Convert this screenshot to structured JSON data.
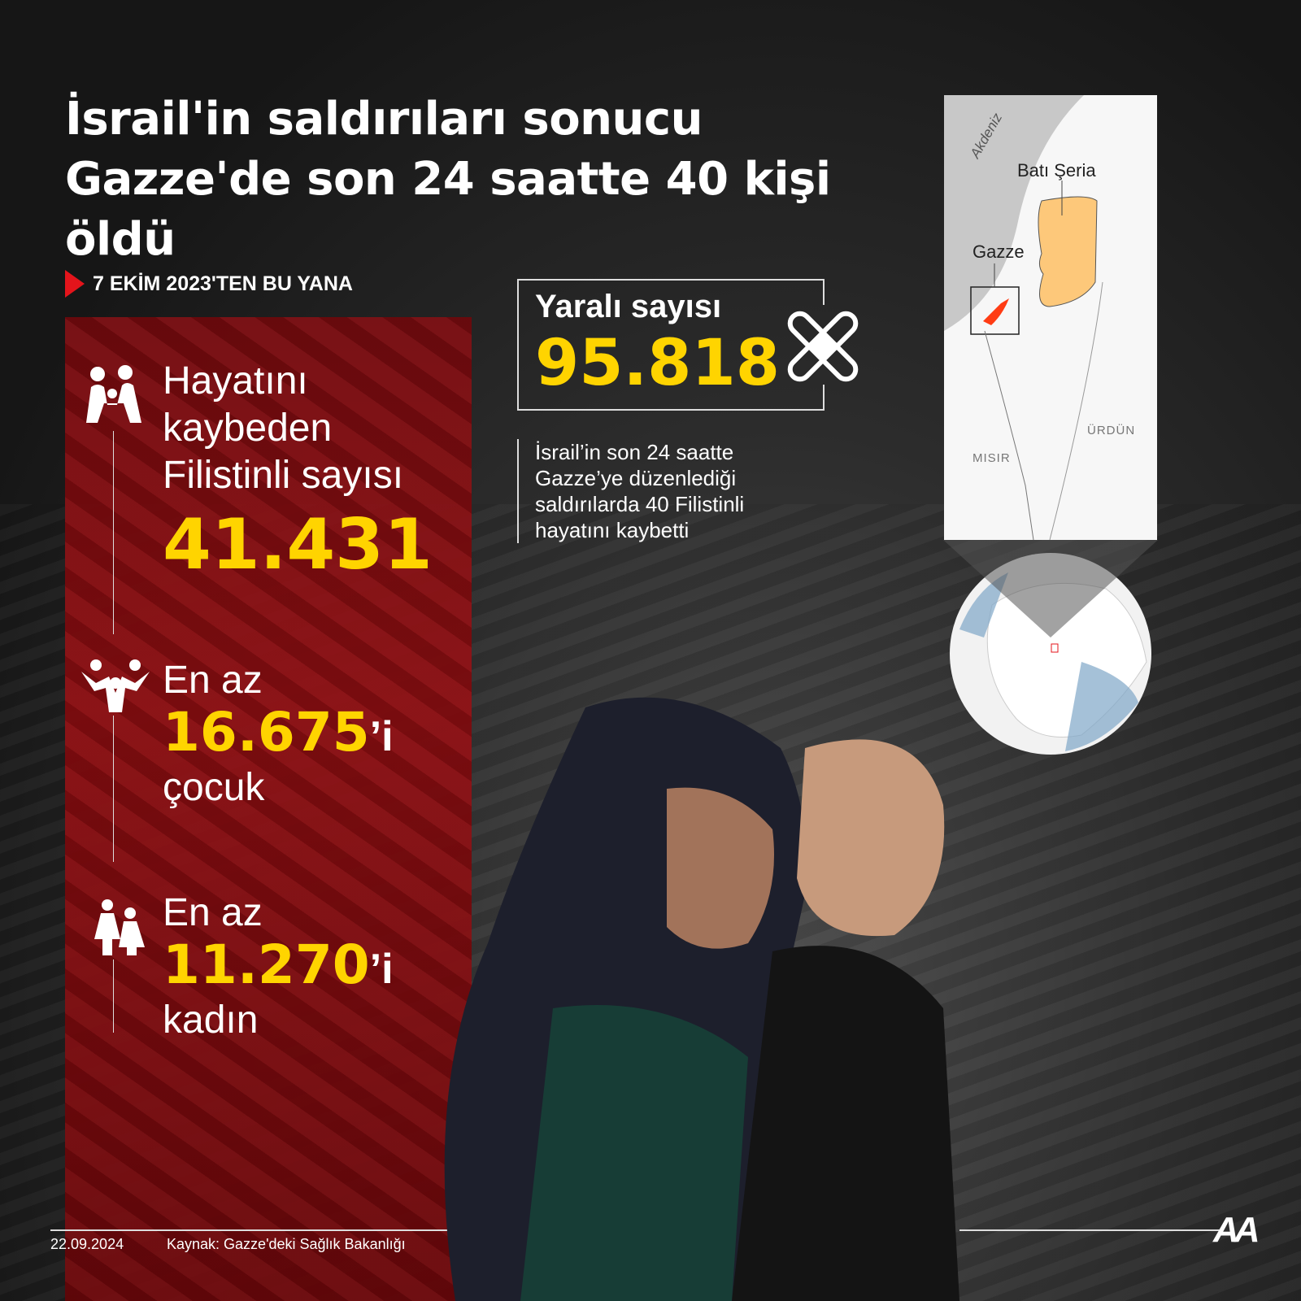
{
  "title": "İsrail'in saldırıları sonucu Gazze'de son 24 saatte 40 kişi öldü",
  "since_label": "7 EKİM 2023'TEN BU YANA",
  "killed": {
    "label": "Hayatını kaybeden Filistinli sayısı",
    "value": "41.431",
    "icon": "family-icon"
  },
  "children": {
    "prefix": "En az",
    "value": "16.675",
    "suffix": "’i",
    "label": "çocuk",
    "icon": "children-icon"
  },
  "women": {
    "prefix": "En az",
    "value": "11.270",
    "suffix": "’i",
    "label": "kadın",
    "icon": "women-icon"
  },
  "injured": {
    "label": "Yaralı sayısı",
    "value": "95.818",
    "icon": "bandage-icon"
  },
  "description": "İsrail’in son 24 saatte Gazze’ye düzenlediği saldırılarda 40 Filistinli hayatını kaybetti",
  "map": {
    "sea": "Akdeniz",
    "west_bank": "Batı Şeria",
    "gaza": "Gazze",
    "jordan": "ÜRDÜN",
    "egypt": "MISIR",
    "colors": {
      "gaza": "#ff3c14",
      "west_bank": "#fdc87a",
      "sea": "#c8c8c8"
    }
  },
  "footer": {
    "date": "22.09.2024",
    "source": "Kaynak: Gazze'deki Sağlık Bakanlığı",
    "logo": "AA"
  },
  "colors": {
    "accent": "#ffd400",
    "red": "#e4141b"
  }
}
